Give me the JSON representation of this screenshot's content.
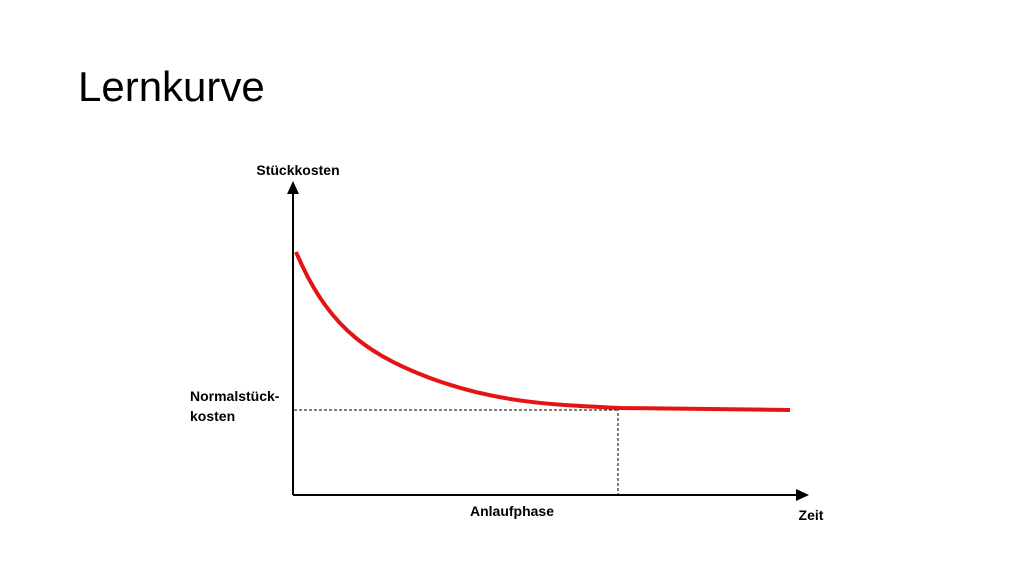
{
  "title": "Lernkurve",
  "diagram": {
    "y_axis_label": "Stückkosten",
    "x_axis_label": "Zeit",
    "level_label": [
      "Normalstück-",
      "kosten"
    ],
    "phase_label": "Anlaufphase"
  }
}
